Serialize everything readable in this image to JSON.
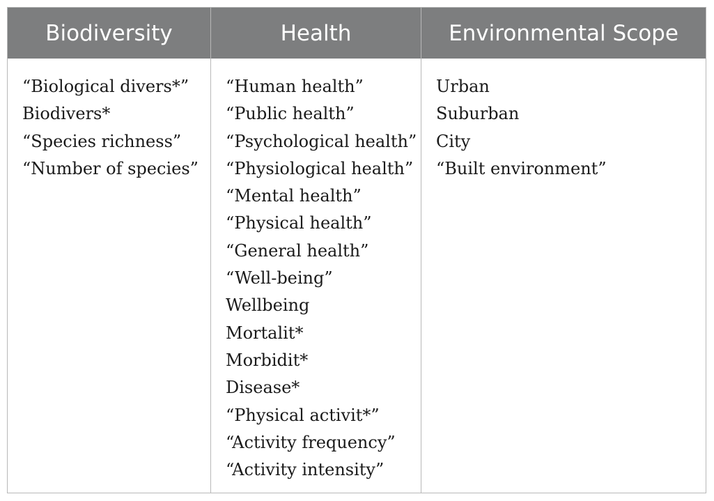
{
  "table": {
    "headers": [
      "Biodiversity",
      "Health",
      "Environmental Scope"
    ],
    "columns": [
      [
        "“Biological divers*”",
        "Biodivers*",
        "“Species richness”",
        "“Number of species”"
      ],
      [
        "“Human health”",
        "“Public health”",
        "“Psychological health”",
        "“Physiological health”",
        "“Mental health”",
        "“Physical health”",
        "“General health”",
        "“Well-being”",
        "Wellbeing",
        "Mortalit*",
        "Morbidit*",
        "Disease*",
        "“Physical activit*”",
        "“Activity frequency”",
        "“Activity intensity”"
      ],
      [
        "Urban",
        "Suburban",
        "City",
        "“Built environment”"
      ]
    ]
  }
}
